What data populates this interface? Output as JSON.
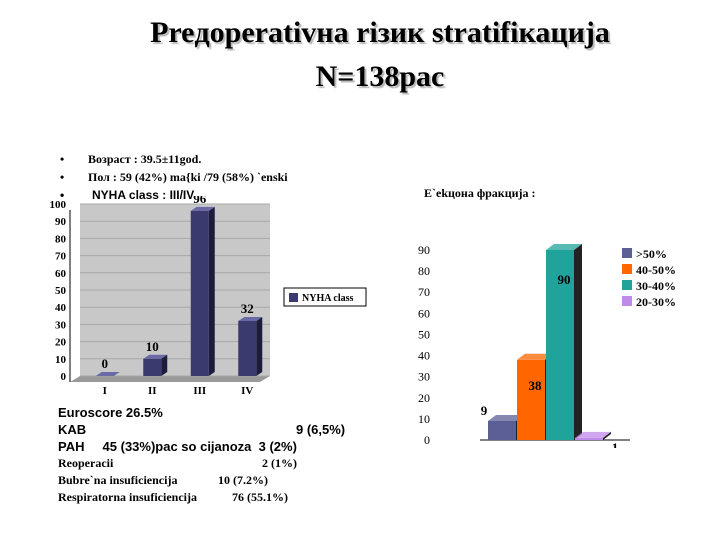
{
  "title_line1": "Preдоperativна rізик stratifікација",
  "title_line2": "N=138pac",
  "bullets": [
    "Возраст : 39.5±11god.",
    "Пол : 59 (42%) ma{ki /79 (58%) `enski",
    "NYHA class : III/IV"
  ],
  "ef_label": "E`ekцона фракција :",
  "stats": {
    "euroscore": "Euroscore 26.5%",
    "kab_label": "KAB",
    "kab_value": "9 (6,5%)",
    "pah": "PAH     45 (33%)pac so cijanoza  3 (2%)",
    "reop_label": "Reoperacii",
    "reop_value": "2 (1%)",
    "bubr_label": "Bubre`na insuficiencija",
    "bubr_value": "10 (7.2%)",
    "resp_label": "Respiratorna insuficiencija",
    "resp_value": "76 (55.1%)"
  },
  "chart_data": [
    {
      "type": "bar",
      "categories": [
        "I",
        "II",
        "III",
        "IV"
      ],
      "series": [
        {
          "name": "NYHA class",
          "values": [
            0,
            10,
            96,
            32
          ],
          "color": "#3a3a6e"
        }
      ],
      "data_labels": [
        "0",
        "10",
        "96",
        "32"
      ],
      "ylim": [
        0,
        100
      ],
      "yticks": [
        "0",
        "10",
        "20",
        "30",
        "40",
        "50",
        "60",
        "70",
        "80",
        "90",
        "100"
      ],
      "grid": true,
      "legend": "right"
    },
    {
      "type": "bar",
      "categories": [
        ">50%",
        "40-50%",
        "30-40%",
        "20-30%"
      ],
      "series": [
        {
          "name": ">50%",
          "value": 9,
          "color": "#5c5f95"
        },
        {
          "name": "40-50%",
          "value": 38,
          "color": "#ff6600"
        },
        {
          "name": "30-40%",
          "value": 90,
          "color": "#1fa39a"
        },
        {
          "name": "20-30%",
          "value": 1,
          "color": "#c08ae8"
        }
      ],
      "data_labels": [
        "9",
        "38",
        "90",
        "1"
      ],
      "ylim": [
        0,
        90
      ],
      "yticks": [
        "0",
        "10",
        "20",
        "30",
        "40",
        "50",
        "60",
        "70",
        "80",
        "90"
      ],
      "grid": false,
      "legend": "right"
    }
  ]
}
